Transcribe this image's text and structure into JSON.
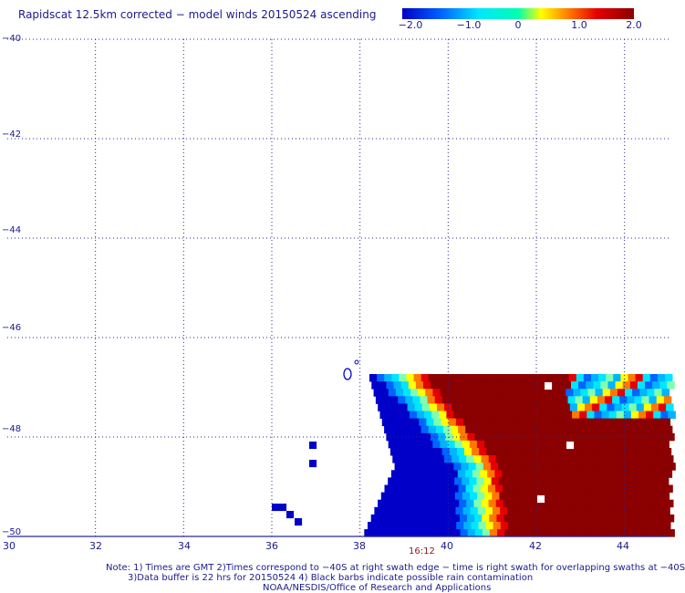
{
  "title": "Rapidscat 12.5km corrected − model winds 20150524 ascending",
  "colorbar": {
    "labels": [
      "−2.0",
      "−1.0",
      "0",
      "1.0",
      "2.0"
    ],
    "values": [
      -2.0,
      -1.0,
      0,
      1.0,
      2.0
    ],
    "range": [
      -2.0,
      2.0
    ],
    "colors": [
      "#0000c8",
      "#0064ff",
      "#00e6ff",
      "#ffff00",
      "#ff7800",
      "#e60000",
      "#8b0000"
    ]
  },
  "axes": {
    "lat_labels": [
      "−40",
      "−42",
      "−44",
      "−46",
      "−48",
      "−50"
    ],
    "lat_values": [
      -40,
      -42,
      -44,
      -46,
      -48,
      -50
    ],
    "lon_labels": [
      "30",
      "32",
      "34",
      "36",
      "38",
      "40",
      "42",
      "44"
    ],
    "lon_values": [
      30,
      32,
      34,
      36,
      38,
      40,
      42,
      44
    ],
    "lon_range": [
      30,
      45
    ],
    "lat_range": [
      -50,
      -40
    ],
    "grid": true
  },
  "time_label": "16:12",
  "notes": [
    "Note: 1) Times are GMT 2)Times correspond to −40S at right swath edge − time is right swath for overlapping swaths at −40S",
    "3)Data buffer is 22 hrs for 20150524 4) Black barbs indicate possible rain contamination",
    "NOAA/NESDIS/Office of Research and Applications"
  ]
}
